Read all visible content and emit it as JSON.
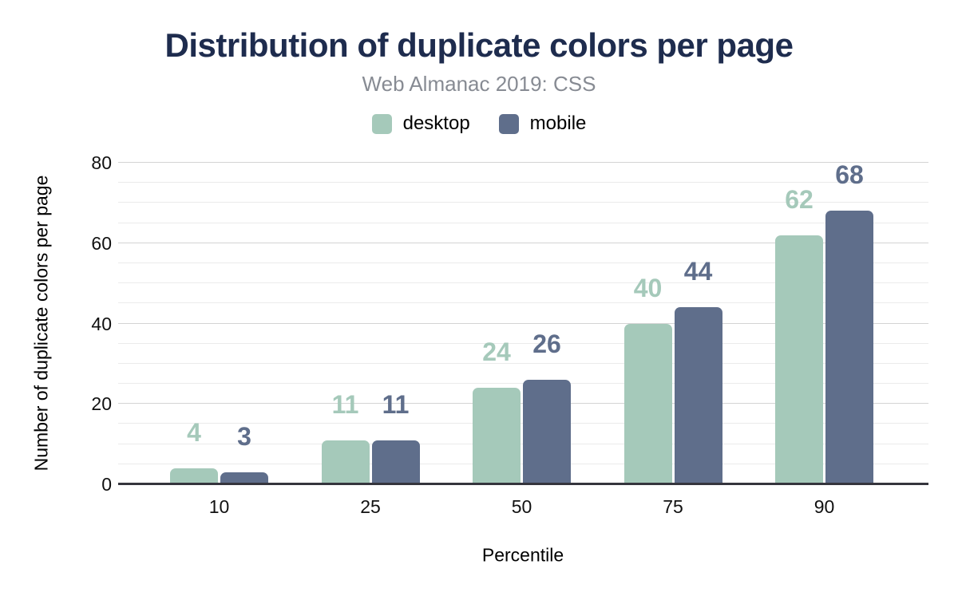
{
  "chart": {
    "title": "Distribution of duplicate colors per page",
    "subtitle": "Web Almanac 2019: CSS",
    "xlabel": "Percentile",
    "ylabel": "Number of duplicate colors per page"
  },
  "chart_data": {
    "type": "bar",
    "categories": [
      "10",
      "25",
      "50",
      "75",
      "90"
    ],
    "series": [
      {
        "name": "desktop",
        "color": "#a5c9ba",
        "values": [
          4,
          11,
          24,
          40,
          62
        ]
      },
      {
        "name": "mobile",
        "color": "#5f6e8b",
        "values": [
          3,
          11,
          26,
          44,
          68
        ]
      }
    ],
    "title": "Distribution of duplicate colors per page",
    "subtitle": "Web Almanac 2019: CSS",
    "xlabel": "Percentile",
    "ylabel": "Number of duplicate colors per page",
    "ylim": [
      0,
      80
    ],
    "y_ticks": [
      0,
      20,
      40,
      60,
      80
    ],
    "y_major_step": 20,
    "y_minor_step": 5,
    "grid": "on",
    "legend_position": "top"
  },
  "colors": {
    "title_text": "#1e2c4e",
    "subtitle_text": "#878b93",
    "desktop": "#a5c9ba",
    "mobile": "#5f6e8b",
    "grid_major": "#d4d4d4",
    "grid_minor": "#ebebeb",
    "axis_line": "#35353d",
    "tick_text": "#111111"
  }
}
